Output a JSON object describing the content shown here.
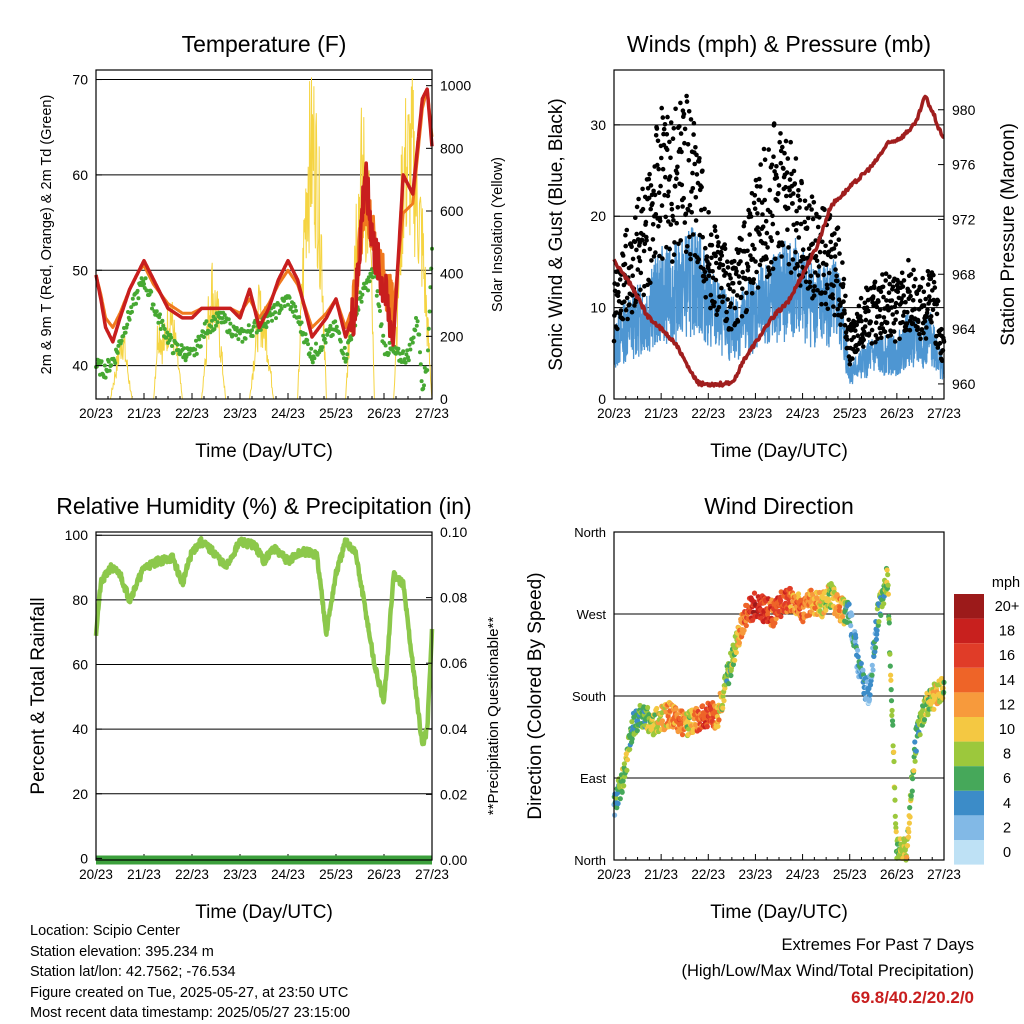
{
  "chart_data": [
    {
      "type": "line",
      "title": "Temperature (F)",
      "xlabel": "Time (Day/UTC)",
      "ylabel": "2m & 9m T (Red, Orange) & 2m Td (Green)",
      "ylabel_right": "Solar Insolation (Yellow)",
      "x_ticks": [
        "20/23",
        "21/23",
        "22/23",
        "23/23",
        "24/23",
        "25/23",
        "26/23",
        "27/23"
      ],
      "ylim": [
        36.5,
        71
      ],
      "y_ticks": [
        40,
        50,
        60,
        70
      ],
      "ylim_right": [
        0,
        1050
      ],
      "y_ticks_right": [
        0,
        200,
        400,
        600,
        800,
        1000
      ],
      "grid": true,
      "series": [
        {
          "key": "t2m",
          "color": "#c81e1e",
          "x": [
            0,
            0.1,
            0.2,
            0.35,
            0.5,
            0.7,
            0.9,
            1.0,
            1.2,
            1.5,
            1.8,
            2.0,
            2.2,
            2.5,
            2.8,
            3.0,
            3.2,
            3.4,
            3.6,
            3.8,
            4.0,
            4.2,
            4.5,
            4.8,
            5.0,
            5.2,
            5.4,
            5.6,
            5.8,
            6.0,
            6.2,
            6.4,
            6.6,
            6.8,
            6.9,
            7.0
          ],
          "values": [
            49.5,
            47,
            44,
            42.5,
            45,
            48,
            50,
            51,
            49,
            46,
            45,
            45,
            46,
            46,
            46,
            45,
            48,
            44,
            46,
            49,
            51,
            49,
            43,
            45,
            47,
            43,
            46,
            60,
            52,
            48,
            43,
            60,
            58,
            68,
            69,
            63
          ]
        },
        {
          "key": "t9m",
          "color": "#f07a1e",
          "x": [
            0,
            0.1,
            0.2,
            0.35,
            0.5,
            0.7,
            0.9,
            1.0,
            1.2,
            1.5,
            1.8,
            2.0,
            2.2,
            2.5,
            2.8,
            3.0,
            3.2,
            3.4,
            3.6,
            3.8,
            4.0,
            4.2,
            4.5,
            4.8,
            5.0,
            5.2,
            5.4,
            5.6,
            5.8,
            6.0,
            6.2,
            6.4,
            6.6,
            6.8,
            6.9,
            7.0
          ],
          "values": [
            49.5,
            47.5,
            45,
            44,
            45.5,
            48,
            50,
            50.5,
            48.5,
            46.5,
            45.5,
            45.5,
            46,
            46,
            46,
            45.5,
            47,
            45,
            46.5,
            48.5,
            50,
            48.5,
            44,
            45.5,
            47,
            44,
            47,
            58,
            53,
            49,
            46,
            56,
            57,
            67,
            69,
            64
          ]
        },
        {
          "key": "td2m",
          "color": "#46a832",
          "x": [
            0,
            0.2,
            0.4,
            0.6,
            0.9,
            1.0,
            1.3,
            1.6,
            2.0,
            2.3,
            2.6,
            3.0,
            3.3,
            3.6,
            4.0,
            4.2,
            4.5,
            4.8,
            5.0,
            5.2,
            5.5,
            5.8,
            6.0,
            6.3,
            6.5,
            6.7,
            6.8,
            6.9,
            7.0
          ],
          "values": [
            40,
            39.5,
            41,
            44,
            48,
            49,
            45,
            42,
            41,
            44,
            45,
            43,
            44,
            45,
            47,
            45,
            41,
            43,
            44,
            41,
            47,
            50,
            42,
            41,
            41,
            45,
            38,
            40,
            52
          ]
        },
        {
          "key": "solar",
          "color": "#f5d442",
          "axis": "right",
          "x": [
            0,
            0.3,
            0.55,
            0.75,
            1.0,
            1.2,
            1.3,
            1.4,
            1.55,
            1.7,
            1.8,
            2.0,
            2.2,
            2.4,
            2.55,
            2.7,
            2.8,
            3.0,
            3.2,
            3.4,
            3.55,
            3.7,
            3.8,
            4.0,
            4.2,
            4.4,
            4.55,
            4.7,
            4.8,
            5.0,
            5.2,
            5.4,
            5.55,
            5.7,
            5.8,
            6.0,
            6.2,
            6.4,
            6.6,
            6.8,
            7.0
          ],
          "values": [
            0,
            0,
            250,
            0,
            0,
            0,
            300,
            200,
            350,
            150,
            0,
            0,
            0,
            450,
            300,
            0,
            0,
            0,
            0,
            350,
            250,
            0,
            0,
            0,
            0,
            900,
            1000,
            600,
            0,
            0,
            0,
            650,
            900,
            700,
            0,
            0,
            0,
            900,
            950,
            600,
            0
          ]
        }
      ]
    },
    {
      "type": "scatter",
      "title": "Winds (mph) & Pressure (mb)",
      "xlabel": "Time (Day/UTC)",
      "ylabel": "Sonic Wind & Gust (Blue, Black)",
      "ylabel_right": "Station Pressure (Maroon)",
      "x_ticks": [
        "20/23",
        "21/23",
        "22/23",
        "23/23",
        "24/23",
        "25/23",
        "26/23",
        "27/23"
      ],
      "ylim": [
        0,
        36
      ],
      "y_ticks": [
        0,
        10,
        20,
        30
      ],
      "ylim_right": [
        958.9,
        982.9
      ],
      "y_ticks_right": [
        960,
        964,
        968,
        972,
        976,
        980
      ],
      "grid": true,
      "series": [
        {
          "key": "wind",
          "color": "#4e96d2",
          "x": [
            0,
            0.25,
            0.5,
            0.75,
            1.0,
            1.25,
            1.5,
            1.75,
            2.0,
            2.25,
            2.5,
            2.75,
            3.0,
            3.25,
            3.5,
            3.75,
            4.0,
            4.25,
            4.5,
            4.75,
            5.0,
            5.25,
            5.5,
            5.75,
            6.0,
            6.25,
            6.5,
            6.75,
            7.0
          ],
          "values": [
            6,
            8,
            9,
            10,
            12,
            12,
            13,
            14,
            11,
            9,
            8,
            9,
            10,
            11,
            12,
            13,
            12,
            11,
            11,
            11,
            3,
            4,
            5,
            5,
            5,
            7,
            6,
            7,
            3
          ]
        },
        {
          "key": "gust",
          "color": "#000000",
          "x": [
            0,
            0.25,
            0.5,
            0.75,
            1.0,
            1.25,
            1.5,
            1.75,
            2.0,
            2.25,
            2.5,
            2.75,
            3.0,
            3.25,
            3.5,
            3.75,
            4.0,
            4.25,
            4.5,
            4.75,
            5.0,
            5.25,
            5.5,
            5.75,
            6.0,
            6.25,
            6.5,
            6.75,
            7.0
          ],
          "values": [
            10,
            14,
            17,
            20,
            25,
            24,
            26,
            23,
            16,
            14,
            12,
            15,
            19,
            22,
            24,
            22,
            18,
            17,
            16,
            15,
            6,
            9,
            10,
            11,
            10,
            12,
            10,
            12,
            5
          ]
        },
        {
          "key": "pressure",
          "color": "#a01e1e",
          "axis": "right",
          "x": [
            0,
            0.2,
            0.4,
            0.7,
            1.0,
            1.3,
            1.6,
            1.8,
            2.2,
            2.5,
            2.8,
            3.0,
            3.4,
            3.7,
            4.0,
            4.3,
            4.6,
            4.9,
            5.2,
            5.5,
            5.8,
            6.1,
            6.4,
            6.6,
            6.8,
            6.9,
            7.0
          ],
          "values": [
            969,
            968,
            967,
            965,
            964,
            963,
            961,
            960,
            960,
            960,
            962,
            963,
            965,
            966,
            968,
            970,
            973,
            974,
            975,
            976,
            977.5,
            978,
            979,
            981,
            979.5,
            978.5,
            978
          ]
        }
      ]
    },
    {
      "type": "line",
      "title": "Relative Humidity (%) & Precipitation (in)",
      "xlabel": "Time (Day/UTC)",
      "ylabel": "Percent & Total Rainfall",
      "ylabel_right": "**Precipitation Questionable**",
      "x_ticks": [
        "20/23",
        "21/23",
        "22/23",
        "23/23",
        "24/23",
        "25/23",
        "26/23",
        "27/23"
      ],
      "ylim": [
        -0.5,
        101
      ],
      "y_ticks": [
        0,
        20,
        40,
        60,
        80,
        100
      ],
      "ylim_right": [
        0,
        0.1
      ],
      "y_ticks_right": [
        "0.00",
        "0.02",
        "0.04",
        "0.06",
        "0.08",
        "0.10"
      ],
      "grid": true,
      "series": [
        {
          "key": "rh",
          "color": "#8cc84b",
          "x": [
            0,
            0.1,
            0.3,
            0.5,
            0.7,
            1.0,
            1.3,
            1.6,
            1.8,
            2.0,
            2.2,
            2.5,
            2.7,
            3.0,
            3.3,
            3.5,
            3.7,
            4.0,
            4.3,
            4.6,
            4.8,
            5.0,
            5.2,
            5.4,
            5.6,
            5.8,
            6.0,
            6.2,
            6.4,
            6.6,
            6.8,
            6.9,
            7.0
          ],
          "values": [
            70,
            85,
            90,
            88,
            80,
            90,
            92,
            93,
            85,
            95,
            98,
            94,
            90,
            98,
            97,
            92,
            96,
            92,
            95,
            94,
            70,
            88,
            98,
            95,
            78,
            60,
            48,
            88,
            85,
            60,
            35,
            40,
            70
          ]
        },
        {
          "key": "precip",
          "color": "#3ca03c",
          "axis": "right",
          "x": [
            0,
            7
          ],
          "values": [
            0,
            0
          ]
        }
      ]
    },
    {
      "type": "scatter",
      "title": "Wind Direction",
      "xlabel": "Time (Day/UTC)",
      "ylabel": "Direction (Colored By Speed)",
      "x_ticks": [
        "20/23",
        "21/23",
        "22/23",
        "23/23",
        "24/23",
        "25/23",
        "26/23",
        "27/23"
      ],
      "y_ticks": [
        "North",
        "East",
        "South",
        "West",
        "North"
      ],
      "ylim": [
        0,
        360
      ],
      "grid": true,
      "colorbar": {
        "title": "mph",
        "labels": [
          "20+",
          "18",
          "16",
          "14",
          "12",
          "10",
          "8",
          "6",
          "4",
          "2",
          "0"
        ],
        "colors": [
          "#9c1a1a",
          "#c8201e",
          "#e03c28",
          "#ee6428",
          "#f79a3c",
          "#f4c842",
          "#9cc83c",
          "#46a85a",
          "#3c8cc8",
          "#82b9e6",
          "#bee1f5"
        ]
      },
      "x": [
        0,
        0.2,
        0.4,
        0.6,
        0.8,
        1.0,
        1.2,
        1.4,
        1.6,
        1.8,
        2.0,
        2.2,
        2.4,
        2.6,
        2.8,
        3.0,
        3.2,
        3.4,
        3.6,
        3.8,
        4.0,
        4.2,
        4.4,
        4.6,
        4.8,
        5.0,
        5.2,
        5.4,
        5.6,
        5.8,
        6.0,
        6.2,
        6.4,
        6.6,
        6.8,
        7.0
      ],
      "direction": [
        60,
        90,
        150,
        160,
        150,
        155,
        160,
        150,
        150,
        155,
        160,
        158,
        200,
        240,
        270,
        280,
        275,
        270,
        285,
        285,
        275,
        285,
        280,
        290,
        275,
        270,
        210,
        180,
        270,
        310,
        10,
        10,
        130,
        170,
        180,
        190
      ],
      "speed": [
        4,
        8,
        6,
        6,
        8,
        10,
        12,
        14,
        8,
        14,
        16,
        12,
        6,
        10,
        14,
        18,
        16,
        14,
        16,
        12,
        14,
        12,
        10,
        8,
        12,
        4,
        4,
        2,
        6,
        8,
        8,
        10,
        6,
        8,
        10,
        8
      ]
    }
  ],
  "info": {
    "location": "Location: Scipio Center",
    "elevation": "Station elevation: 395.234 m",
    "latlon": "Station lat/lon: 42.7562; -76.534",
    "created": "Figure created on Tue, 2025-05-27, at 23:50 UTC",
    "recent": "Most recent data timestamp: 2025/05/27 23:15:00"
  },
  "extremes": {
    "line1": "Extremes For Past 7 Days",
    "line2": "(High/Low/Max Wind/Total Precipitation)",
    "values": "69.8/40.2/20.2/0",
    "values_color": "#c81e1e"
  }
}
